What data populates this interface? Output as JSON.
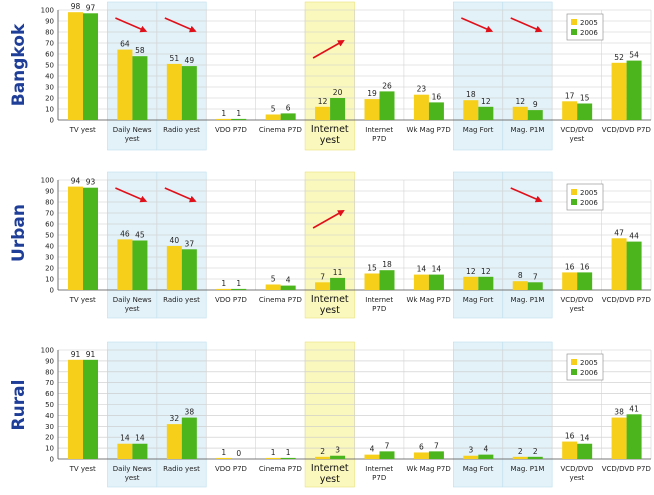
{
  "colors": {
    "series_2005": "#f6cf1a",
    "series_2006": "#4cb51d",
    "highlight_blue": "#e3f1f8",
    "highlight_yellow": "#fbf8be",
    "region_title": "#1f3e98",
    "arrow": "#e0101a"
  },
  "chart_data": [
    {
      "type": "bar",
      "title": "Bangkok",
      "categories": [
        "TV yest",
        "Daily News yest",
        "Radio yest",
        "VDO P7D",
        "Cinema P7D",
        "Internet yest",
        "Internet P7D",
        "Wk Mag P7D",
        "Mag Fort",
        "Mag. P1M",
        "VCD/DVD yest",
        "VCD/DVD P7D"
      ],
      "series": [
        {
          "name": "2005",
          "values": [
            98,
            64,
            51,
            1,
            5,
            12,
            19,
            23,
            18,
            12,
            17,
            52
          ]
        },
        {
          "name": "2006",
          "values": [
            97,
            58,
            49,
            1,
            6,
            20,
            26,
            16,
            12,
            9,
            15,
            54
          ]
        }
      ],
      "highlight_blue": [
        "Daily News yest",
        "Radio yest",
        "Mag Fort",
        "Mag. P1M"
      ],
      "highlight_yellow": [
        "Internet yest"
      ],
      "trend_arrows": [
        {
          "category": "Daily News yest",
          "direction": "down"
        },
        {
          "category": "Radio yest",
          "direction": "down"
        },
        {
          "category": "Internet yest",
          "direction": "up"
        },
        {
          "category": "Mag Fort",
          "direction": "down"
        },
        {
          "category": "Mag. P1M",
          "direction": "down"
        }
      ],
      "ylim": [
        0,
        100
      ],
      "yticks": [
        0,
        10,
        20,
        30,
        40,
        50,
        60,
        70,
        80,
        90,
        100
      ],
      "legend": [
        "2005",
        "2006"
      ],
      "legend_position": "top-right",
      "grid": true
    },
    {
      "type": "bar",
      "title": "Urban",
      "categories": [
        "TV yest",
        "Daily News yest",
        "Radio yest",
        "VDO P7D",
        "Cinema P7D",
        "Internet yest",
        "Internet P7D",
        "Wk Mag P7D",
        "Mag Fort",
        "Mag. P1M",
        "VCD/DVD yest",
        "VCD/DVD P7D"
      ],
      "series": [
        {
          "name": "2005",
          "values": [
            94,
            46,
            40,
            1,
            5,
            7,
            15,
            14,
            12,
            8,
            16,
            47
          ]
        },
        {
          "name": "2006",
          "values": [
            93,
            45,
            37,
            1,
            4,
            11,
            18,
            14,
            12,
            7,
            16,
            44
          ]
        }
      ],
      "highlight_blue": [
        "Daily News yest",
        "Radio yest",
        "Mag Fort",
        "Mag. P1M"
      ],
      "highlight_yellow": [
        "Internet yest"
      ],
      "trend_arrows": [
        {
          "category": "Daily News yest",
          "direction": "down"
        },
        {
          "category": "Radio yest",
          "direction": "down"
        },
        {
          "category": "Internet yest",
          "direction": "up"
        },
        {
          "category": "Mag. P1M",
          "direction": "down"
        }
      ],
      "ylim": [
        0,
        100
      ],
      "yticks": [
        0,
        10,
        20,
        30,
        40,
        50,
        60,
        70,
        80,
        90,
        100
      ],
      "legend": [
        "2005",
        "2006"
      ],
      "legend_position": "top-right",
      "grid": true
    },
    {
      "type": "bar",
      "title": "Rural",
      "categories": [
        "TV yest",
        "Daily News yest",
        "Radio yest",
        "VDO P7D",
        "Cinema P7D",
        "Internet yest",
        "Internet P7D",
        "Wk Mag P7D",
        "Mag Fort",
        "Mag. P1M",
        "VCD/DVD yest",
        "VCD/DVD P7D"
      ],
      "series": [
        {
          "name": "2005",
          "values": [
            91,
            14,
            32,
            1,
            1,
            2,
            4,
            6,
            3,
            2,
            16,
            38
          ]
        },
        {
          "name": "2006",
          "values": [
            91,
            14,
            38,
            0,
            1,
            3,
            7,
            7,
            4,
            2,
            14,
            41
          ]
        }
      ],
      "highlight_blue": [
        "Daily News yest",
        "Radio yest",
        "Mag Fort",
        "Mag. P1M"
      ],
      "highlight_yellow": [
        "Internet yest"
      ],
      "trend_arrows": [],
      "ylim": [
        0,
        100
      ],
      "yticks": [
        0,
        10,
        20,
        30,
        40,
        50,
        60,
        70,
        80,
        90,
        100
      ],
      "legend": [
        "2005",
        "2006"
      ],
      "legend_position": "top-right",
      "grid": true
    }
  ]
}
